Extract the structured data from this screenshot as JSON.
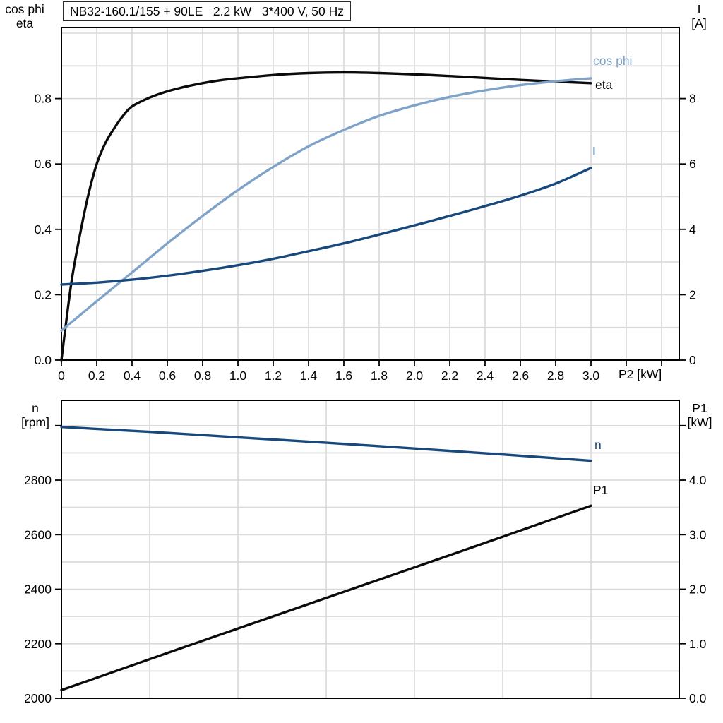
{
  "title": "NB32-160.1/155 + 90LE   2.2 kW   3*400 V, 50 Hz",
  "colors": {
    "black": "#0b0b0b",
    "dark_blue": "#17497C",
    "light_blue": "#7FA3C8",
    "grid": "#D9D9DC",
    "frame": "#000000"
  },
  "labels": {
    "top_left": {
      "line1": "cos phi",
      "line2": "eta"
    },
    "top_right": {
      "line1": "I",
      "line2": "[A]"
    },
    "x_axis": "P2 [kW]",
    "bottom_left": {
      "line1": "n",
      "line2": "[rpm]"
    },
    "bottom_right": {
      "line1": "P1",
      "line2": "[kW]"
    },
    "curve_labels": [
      {
        "text": "cos phi",
        "color": "light_blue"
      },
      {
        "text": "eta",
        "color": "black"
      },
      {
        "text": "I",
        "color": "dark_blue"
      },
      {
        "text": "n",
        "color": "dark_blue"
      },
      {
        "text": "P1",
        "color": "black"
      }
    ]
  },
  "chart_data": [
    {
      "type": "line",
      "title": "NB32-160.1/155 + 90LE   2.2 kW   3*400 V, 50 Hz",
      "grid": true,
      "legend_position": "inline-curve-labels",
      "x_axis": {
        "label": "P2 [kW]",
        "min": 0,
        "max": 3.5,
        "grid_step": 0.2,
        "ticks": [
          {
            "v": 0,
            "t": "0"
          },
          {
            "v": 0.2,
            "t": "0.2"
          },
          {
            "v": 0.4,
            "t": "0.4"
          },
          {
            "v": 0.6,
            "t": "0.6"
          },
          {
            "v": 0.8,
            "t": "0.8"
          },
          {
            "v": 1.0,
            "t": "1.0"
          },
          {
            "v": 1.2,
            "t": "1.2"
          },
          {
            "v": 1.4,
            "t": "1.4"
          },
          {
            "v": 1.6,
            "t": "1.6"
          },
          {
            "v": 1.8,
            "t": "1.8"
          },
          {
            "v": 2.0,
            "t": "2.0"
          },
          {
            "v": 2.2,
            "t": "2.2"
          },
          {
            "v": 2.4,
            "t": "2.4"
          },
          {
            "v": 2.6,
            "t": "2.6"
          },
          {
            "v": 2.8,
            "t": "2.8"
          },
          {
            "v": 3.0,
            "t": "3.0"
          }
        ],
        "unlabeled_ticks": [
          3.2,
          3.4
        ]
      },
      "y_left": {
        "label": "cos phi / eta",
        "min": 0,
        "max": 1.0173,
        "grid_step": 0.1,
        "ticks": [
          {
            "v": 0.0,
            "t": "0.0"
          },
          {
            "v": 0.2,
            "t": "0.2"
          },
          {
            "v": 0.4,
            "t": "0.4"
          },
          {
            "v": 0.6,
            "t": "0.6"
          },
          {
            "v": 0.8,
            "t": "0.8"
          }
        ],
        "unlabeled_ticks": []
      },
      "y_right": {
        "label": "I [A]",
        "min": 0,
        "max": 10.173,
        "grid_step": 99,
        "ticks": [
          {
            "v": 0,
            "t": "0"
          },
          {
            "v": 2,
            "t": "2"
          },
          {
            "v": 4,
            "t": "4"
          },
          {
            "v": 6,
            "t": "6"
          },
          {
            "v": 8,
            "t": "8"
          }
        ],
        "unlabeled_ticks": []
      },
      "series": [
        {
          "name": "eta",
          "axis": "left",
          "color_key": "black",
          "points": [
            [
              0,
              0
            ],
            [
              0.03,
              0.13
            ],
            [
              0.06,
              0.25
            ],
            [
              0.1,
              0.37
            ],
            [
              0.15,
              0.5
            ],
            [
              0.2,
              0.6
            ],
            [
              0.25,
              0.665
            ],
            [
              0.3,
              0.71
            ],
            [
              0.35,
              0.748
            ],
            [
              0.4,
              0.776
            ],
            [
              0.5,
              0.803
            ],
            [
              0.6,
              0.822
            ],
            [
              0.7,
              0.836
            ],
            [
              0.8,
              0.847
            ],
            [
              0.9,
              0.856
            ],
            [
              1.0,
              0.862
            ],
            [
              1.2,
              0.872
            ],
            [
              1.4,
              0.878
            ],
            [
              1.6,
              0.88
            ],
            [
              1.8,
              0.878
            ],
            [
              2.0,
              0.874
            ],
            [
              2.2,
              0.869
            ],
            [
              2.4,
              0.863
            ],
            [
              2.6,
              0.857
            ],
            [
              2.8,
              0.852
            ],
            [
              3.0,
              0.847
            ]
          ]
        },
        {
          "name": "cos phi",
          "axis": "left",
          "color_key": "light_blue",
          "points": [
            [
              0,
              0.09
            ],
            [
              0.2,
              0.18
            ],
            [
              0.4,
              0.268
            ],
            [
              0.6,
              0.357
            ],
            [
              0.8,
              0.441
            ],
            [
              1.0,
              0.52
            ],
            [
              1.2,
              0.591
            ],
            [
              1.4,
              0.654
            ],
            [
              1.6,
              0.704
            ],
            [
              1.8,
              0.747
            ],
            [
              2.0,
              0.779
            ],
            [
              2.2,
              0.805
            ],
            [
              2.4,
              0.825
            ],
            [
              2.6,
              0.841
            ],
            [
              2.8,
              0.853
            ],
            [
              3.0,
              0.862
            ]
          ]
        },
        {
          "name": "I",
          "axis": "right",
          "color_key": "dark_blue",
          "points": [
            [
              0,
              2.31
            ],
            [
              0.2,
              2.37
            ],
            [
              0.4,
              2.46
            ],
            [
              0.6,
              2.58
            ],
            [
              0.8,
              2.73
            ],
            [
              1.0,
              2.9
            ],
            [
              1.2,
              3.1
            ],
            [
              1.4,
              3.33
            ],
            [
              1.6,
              3.57
            ],
            [
              1.8,
              3.84
            ],
            [
              2.0,
              4.12
            ],
            [
              2.2,
              4.41
            ],
            [
              2.4,
              4.71
            ],
            [
              2.6,
              5.03
            ],
            [
              2.8,
              5.4
            ],
            [
              3.0,
              5.88
            ]
          ]
        }
      ]
    },
    {
      "type": "line",
      "grid": true,
      "legend_position": "inline-curve-labels",
      "x_axis": {
        "label": "",
        "min": 0,
        "max": 3.5,
        "grid_step": 0.5,
        "ticks": [],
        "unlabeled_ticks": []
      },
      "y_left": {
        "label": "n [rpm]",
        "min": 2000,
        "max": 3092.6,
        "grid_step": 100,
        "ticks": [
          {
            "v": 2000,
            "t": "2000"
          },
          {
            "v": 2200,
            "t": "2200"
          },
          {
            "v": 2400,
            "t": "2400"
          },
          {
            "v": 2600,
            "t": "2600"
          },
          {
            "v": 2800,
            "t": "2800"
          }
        ],
        "unlabeled_ticks": [
          3000
        ]
      },
      "y_right": {
        "label": "P1 [kW]",
        "min": 0,
        "max": 5.463,
        "grid_step": 99,
        "ticks": [
          {
            "v": 0.0,
            "t": "0.0"
          },
          {
            "v": 1.0,
            "t": "1.0"
          },
          {
            "v": 2.0,
            "t": "2.0"
          },
          {
            "v": 3.0,
            "t": "3.0"
          },
          {
            "v": 4.0,
            "t": "4.0"
          }
        ],
        "unlabeled_ticks": [
          5.0
        ]
      },
      "series": [
        {
          "name": "n",
          "axis": "left",
          "color_key": "dark_blue",
          "points": [
            [
              0,
              2995
            ],
            [
              0.5,
              2977
            ],
            [
              1.0,
              2957
            ],
            [
              1.5,
              2937
            ],
            [
              2.0,
              2916
            ],
            [
              2.5,
              2894
            ],
            [
              3.0,
              2871
            ]
          ]
        },
        {
          "name": "P1",
          "axis": "right",
          "color_key": "black",
          "points": [
            [
              0,
              0.15
            ],
            [
              0.75,
              1.0
            ],
            [
              1.5,
              1.84
            ],
            [
              2.25,
              2.68
            ],
            [
              3.0,
              3.53
            ]
          ]
        }
      ]
    }
  ]
}
